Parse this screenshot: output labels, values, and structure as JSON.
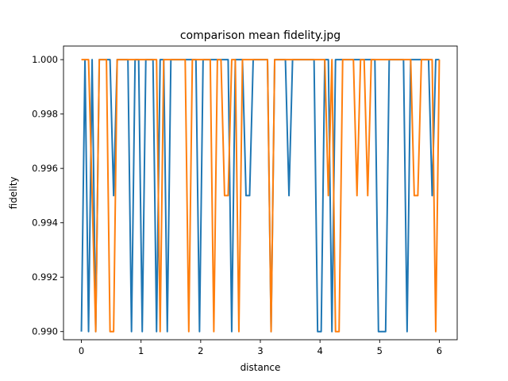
{
  "chart_data": {
    "type": "line",
    "title": "comparison mean fidelity.jpg",
    "xlabel": "distance",
    "ylabel": "fidelity",
    "xlim": [
      -0.3,
      6.3
    ],
    "ylim": [
      0.9897,
      1.0005
    ],
    "xticks": [
      0,
      1,
      2,
      3,
      4,
      5,
      6
    ],
    "yticks": [
      0.99,
      0.992,
      0.994,
      0.996,
      0.998,
      1.0
    ],
    "ytick_labels": [
      "0.990",
      "0.992",
      "0.994",
      "0.996",
      "0.998",
      "1.000"
    ],
    "grid": false,
    "x": [
      0.0,
      0.06,
      0.12,
      0.18,
      0.24,
      0.3,
      0.36,
      0.42,
      0.48,
      0.54,
      0.6,
      0.66,
      0.72,
      0.78,
      0.84,
      0.9,
      0.96,
      1.02,
      1.08,
      1.14,
      1.2,
      1.26,
      1.32,
      1.38,
      1.44,
      1.5,
      1.56,
      1.62,
      1.68,
      1.74,
      1.8,
      1.86,
      1.92,
      1.98,
      2.04,
      2.1,
      2.16,
      2.22,
      2.28,
      2.34,
      2.4,
      2.46,
      2.52,
      2.58,
      2.64,
      2.7,
      2.76,
      2.82,
      2.88,
      2.94,
      3.0,
      3.06,
      3.12,
      3.18,
      3.24,
      3.3,
      3.36,
      3.42,
      3.48,
      3.54,
      3.6,
      3.66,
      3.72,
      3.78,
      3.84,
      3.9,
      3.96,
      4.02,
      4.08,
      4.14,
      4.2,
      4.26,
      4.32,
      4.38,
      4.44,
      4.5,
      4.56,
      4.62,
      4.68,
      4.74,
      4.8,
      4.86,
      4.92,
      4.98,
      5.04,
      5.1,
      5.16,
      5.22,
      5.28,
      5.34,
      5.4,
      5.46,
      5.52,
      5.58,
      5.64,
      5.7,
      5.76,
      5.82,
      5.88,
      5.94,
      6.0
    ],
    "series": [
      {
        "color": "#1f77b4",
        "values": [
          0.99,
          1.0,
          0.99,
          1.0,
          0.99,
          1.0,
          1.0,
          1.0,
          1.0,
          0.995,
          1.0,
          1.0,
          1.0,
          1.0,
          0.99,
          1.0,
          1.0,
          0.99,
          1.0,
          1.0,
          1.0,
          0.99,
          1.0,
          1.0,
          0.99,
          1.0,
          1.0,
          1.0,
          1.0,
          1.0,
          1.0,
          1.0,
          1.0,
          0.99,
          1.0,
          1.0,
          1.0,
          1.0,
          1.0,
          1.0,
          1.0,
          1.0,
          0.99,
          1.0,
          1.0,
          1.0,
          0.995,
          0.995,
          1.0,
          1.0,
          1.0,
          1.0,
          1.0,
          0.99,
          1.0,
          1.0,
          1.0,
          1.0,
          0.995,
          1.0,
          1.0,
          1.0,
          1.0,
          1.0,
          1.0,
          1.0,
          0.99,
          0.99,
          1.0,
          1.0,
          0.99,
          1.0,
          1.0,
          1.0,
          1.0,
          1.0,
          1.0,
          1.0,
          1.0,
          1.0,
          1.0,
          1.0,
          1.0,
          0.99,
          0.99,
          0.99,
          1.0,
          1.0,
          1.0,
          1.0,
          1.0,
          0.99,
          1.0,
          1.0,
          1.0,
          1.0,
          1.0,
          1.0,
          0.995,
          1.0,
          1.0
        ]
      },
      {
        "color": "#ff7f0e",
        "values": [
          1.0,
          1.0,
          1.0,
          0.995,
          0.99,
          1.0,
          1.0,
          1.0,
          0.99,
          0.99,
          1.0,
          1.0,
          1.0,
          1.0,
          1.0,
          1.0,
          1.0,
          1.0,
          1.0,
          1.0,
          1.0,
          1.0,
          0.99,
          1.0,
          1.0,
          1.0,
          1.0,
          1.0,
          1.0,
          1.0,
          0.99,
          1.0,
          1.0,
          1.0,
          1.0,
          1.0,
          1.0,
          0.99,
          1.0,
          1.0,
          0.995,
          0.995,
          1.0,
          1.0,
          0.99,
          1.0,
          1.0,
          1.0,
          1.0,
          1.0,
          1.0,
          1.0,
          1.0,
          0.99,
          1.0,
          1.0,
          1.0,
          1.0,
          1.0,
          1.0,
          1.0,
          1.0,
          1.0,
          1.0,
          1.0,
          1.0,
          1.0,
          1.0,
          1.0,
          0.995,
          1.0,
          0.99,
          0.99,
          1.0,
          1.0,
          1.0,
          1.0,
          0.995,
          1.0,
          1.0,
          0.995,
          1.0,
          1.0,
          1.0,
          1.0,
          1.0,
          1.0,
          1.0,
          1.0,
          1.0,
          1.0,
          1.0,
          1.0,
          0.995,
          0.995,
          1.0,
          1.0,
          1.0,
          1.0,
          0.99,
          1.0
        ]
      }
    ]
  }
}
